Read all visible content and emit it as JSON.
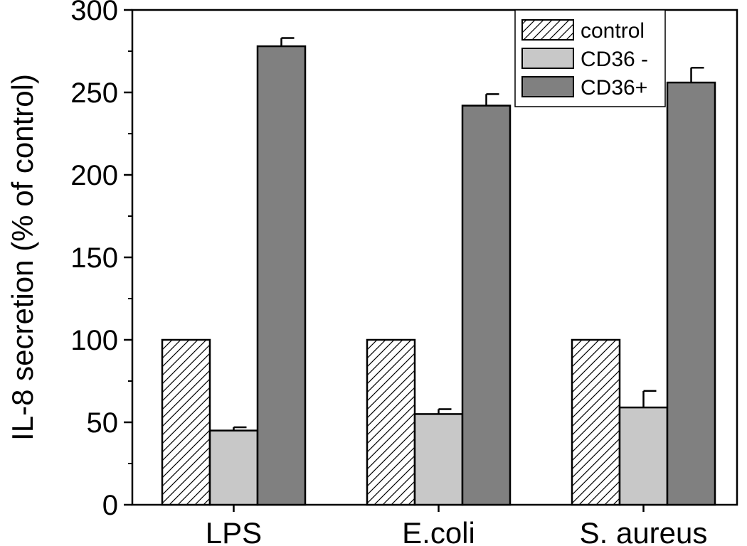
{
  "chart_data": {
    "type": "bar",
    "title": "",
    "xlabel": "",
    "ylabel": "IL-8 secretion (% of control)",
    "categories": [
      "LPS",
      "E.coli",
      "S. aureus"
    ],
    "ylim": [
      0,
      300
    ],
    "yticks": [
      0,
      50,
      100,
      150,
      200,
      250,
      300
    ],
    "legend_position": "top-right",
    "grid": false,
    "series": [
      {
        "name": "control",
        "values": [
          100,
          100,
          100
        ],
        "errors": [
          0,
          0,
          0
        ],
        "color": "#ffffff",
        "pattern": "diagonal-hatch"
      },
      {
        "name": "CD36 -",
        "values": [
          45,
          55,
          59
        ],
        "errors": [
          2,
          3,
          10
        ],
        "color": "#c8c8c8",
        "pattern": "solid"
      },
      {
        "name": "CD36+",
        "values": [
          278,
          242,
          256
        ],
        "errors": [
          5,
          7,
          9
        ],
        "color": "#808080",
        "pattern": "solid"
      }
    ]
  }
}
